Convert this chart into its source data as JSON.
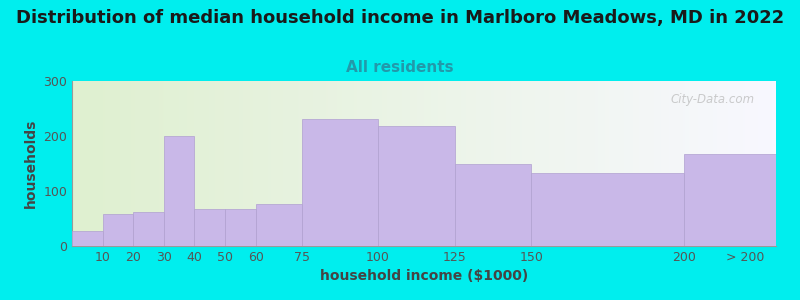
{
  "title": "Distribution of median household income in Marlboro Meadows, MD in 2022",
  "subtitle": "All residents",
  "xlabel": "household income ($1000)",
  "ylabel": "households",
  "background_outer": "#00EEEE",
  "bar_color": "#C9B8E8",
  "bar_edge_color": "#B0A0D0",
  "title_color": "#1a1a1a",
  "subtitle_color": "#2299AA",
  "axis_label_color": "#444444",
  "tick_color": "#555555",
  "watermark_text": "City-Data.com",
  "plot_bg_left": "#dff0d0",
  "plot_bg_right": "#f5f5ff",
  "bin_edges": [
    0,
    10,
    20,
    30,
    40,
    50,
    60,
    75,
    100,
    125,
    150,
    200,
    230
  ],
  "bin_labels": [
    "10",
    "20",
    "30",
    "40",
    "50",
    "60",
    "75",
    "100",
    "125",
    "150",
    "200",
    "> 200"
  ],
  "values": [
    28,
    58,
    62,
    200,
    67,
    67,
    77,
    230,
    218,
    150,
    132,
    167
  ],
  "ylim": [
    0,
    300
  ],
  "yticks": [
    0,
    100,
    200,
    300
  ],
  "title_fontsize": 13,
  "subtitle_fontsize": 11,
  "axis_label_fontsize": 10,
  "tick_fontsize": 9
}
